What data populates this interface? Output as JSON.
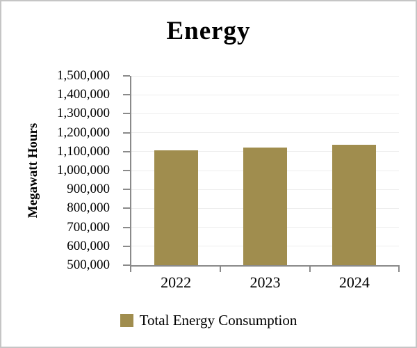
{
  "chart_data": {
    "type": "bar",
    "title": "Energy",
    "ylabel": "Megawatt Hours",
    "xlabel": "",
    "categories": [
      "2022",
      "2023",
      "2024"
    ],
    "series": [
      {
        "name": "Total Energy Consumption",
        "values": [
          1105000,
          1120000,
          1135000
        ]
      }
    ],
    "ylim": [
      500000,
      1500000
    ],
    "ytick_step": 100000,
    "ytick_labels": [
      "500,000",
      "600,000",
      "700,000",
      "800,000",
      "900,000",
      "1,000,000",
      "1,100,000",
      "1,200,000",
      "1,300,000",
      "1,400,000",
      "1,500,000"
    ],
    "grid": true,
    "legend_position": "bottom",
    "colors": {
      "bar": "#a08d4e",
      "axis": "#8a8a8a",
      "gridline": "#ededed",
      "text": "#000000",
      "page_border": "#c5c5c5"
    }
  }
}
